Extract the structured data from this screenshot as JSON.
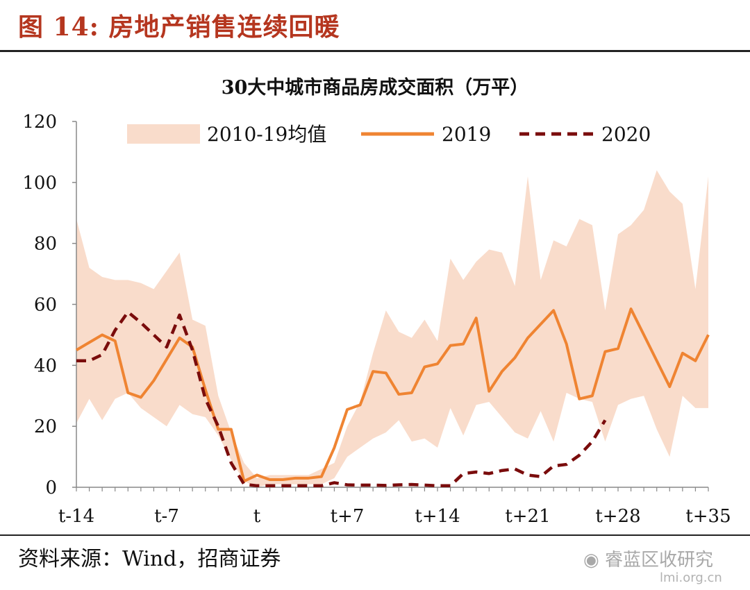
{
  "figure": {
    "label": "图 14:",
    "caption": "房地产销售连续回暖",
    "source": "资料来源：Wind，招商证券",
    "watermark": "睿蓝区收研究",
    "watermark_sub": "lmi.org.cn"
  },
  "chart_data": {
    "type": "line",
    "title": "30大中城市商品房成交面积（万平）",
    "xlabel": "",
    "ylabel": "",
    "ylim": [
      0,
      120
    ],
    "yticks": [
      0,
      20,
      40,
      60,
      80,
      100,
      120
    ],
    "x": [
      "t-14",
      "t-13",
      "t-12",
      "t-11",
      "t-10",
      "t-9",
      "t-8",
      "t-7",
      "t-6",
      "t-5",
      "t-4",
      "t-3",
      "t-2",
      "t-1",
      "t",
      "t+1",
      "t+2",
      "t+3",
      "t+4",
      "t+5",
      "t+6",
      "t+7",
      "t+8",
      "t+9",
      "t+10",
      "t+11",
      "t+12",
      "t+13",
      "t+14",
      "t+15",
      "t+16",
      "t+17",
      "t+18",
      "t+19",
      "t+20",
      "t+21",
      "t+22",
      "t+23",
      "t+24",
      "t+25",
      "t+26",
      "t+27",
      "t+28",
      "t+29",
      "t+30",
      "t+31",
      "t+32",
      "t+33",
      "t+34",
      "t+35"
    ],
    "xtick_labels": [
      "t-14",
      "t-7",
      "t",
      "t+7",
      "t+14",
      "t+21",
      "t+28",
      "t+35"
    ],
    "legend": {
      "placement": "top",
      "items": [
        "2010-19均值",
        "2019",
        "2020"
      ]
    },
    "band": {
      "name": "2010-19均值",
      "color": "#f9dccb",
      "upper": [
        88,
        72,
        69,
        68,
        68,
        67,
        65,
        71,
        77,
        55,
        53,
        30,
        18,
        8,
        3,
        4,
        4,
        4,
        4,
        6,
        8,
        20,
        28,
        44,
        58,
        51,
        49,
        55,
        48,
        75,
        68,
        74,
        78,
        77,
        66,
        102,
        68,
        81,
        79,
        88,
        86,
        58,
        83,
        86,
        91,
        104,
        97,
        93,
        65,
        102
      ],
      "lower": [
        21,
        29,
        22,
        29,
        31,
        26,
        23,
        20,
        27,
        24,
        23,
        17,
        9,
        2,
        0,
        1,
        1,
        1,
        1,
        1,
        3,
        10,
        13,
        16,
        18,
        22,
        15,
        16,
        13,
        26,
        17,
        27,
        28,
        23,
        18,
        16,
        25,
        15,
        31,
        29,
        28,
        15,
        27,
        29,
        30,
        19,
        10,
        30,
        26,
        26
      ]
    },
    "series": [
      {
        "name": "2019",
        "color": "#ef8432",
        "dash": "solid",
        "values": [
          45,
          47.5,
          50,
          48,
          31,
          29.5,
          35,
          42,
          49,
          46,
          32,
          19,
          19,
          2,
          4,
          2.5,
          2.5,
          3,
          3,
          3.5,
          13,
          25.5,
          27,
          38,
          37.5,
          30.5,
          31,
          39.5,
          40.5,
          46.5,
          47,
          55.5,
          31.5,
          38,
          42.5,
          49,
          53.5,
          58,
          47,
          29,
          30,
          44.5,
          45.5,
          58.5,
          50,
          41.5,
          33,
          44,
          41.5,
          50
        ]
      },
      {
        "name": "2020",
        "color": "#7a0c0c",
        "dash": "dashed",
        "values": [
          41.5,
          41.5,
          43.5,
          51.5,
          57.5,
          54,
          50,
          46,
          56.5,
          45,
          29,
          20,
          8,
          1,
          0.5,
          0.5,
          0.5,
          0.5,
          0.5,
          0.5,
          1.5,
          0.8,
          0.7,
          0.7,
          0.6,
          0.8,
          0.9,
          0.7,
          0.5,
          0.5,
          4.5,
          5,
          4.5,
          5.5,
          6,
          4,
          3.5,
          7,
          7.5,
          10.5,
          15,
          22,
          null,
          null,
          null,
          null,
          null,
          null,
          null,
          null
        ]
      }
    ]
  }
}
